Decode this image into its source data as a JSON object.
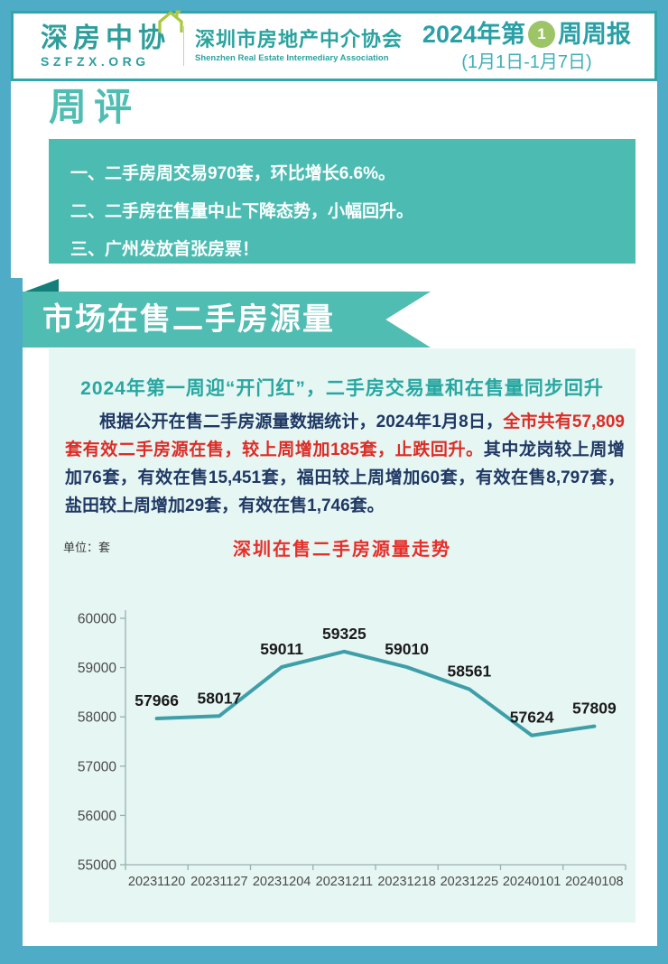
{
  "header": {
    "logo_cn": "深房中协",
    "logo_url": "SZFZX.ORG",
    "org_cn": "深圳市房地产中介协会",
    "org_en": "Shenzhen Real Estate Intermediary Association",
    "title_prefix": "2024年第",
    "week_number": "1",
    "title_suffix": "周周报",
    "date_range": "(1月1日-1月7日)"
  },
  "weekly_review": {
    "title": "周评",
    "items": [
      "一、二手房周交易970套，环比增长6.6%。",
      "二、二手房在售量中止下降态势，小幅回升。",
      "三、广州发放首张房票！"
    ]
  },
  "section": {
    "banner": "市场在售二手房源量",
    "subtitle": "2024年第一周迎“开门红”，二手房交易量和在售量同步回升",
    "paragraph_segments": [
      "根据公开在售二手房源量数据统计，2024年1月8日，",
      "全市共有57,809套有效二手房源在售，较上周增加185套，止跌回升。",
      "其中龙岗较上周增加76套，有效在售15,451套，福田较上周增加60套，有效在售8,797套，盐田较上周增加29套，有效在售1,746套。"
    ],
    "unit_label": "单位：套"
  },
  "chart_data": {
    "type": "line",
    "title": "深圳在售二手房源量走势",
    "categories": [
      "20231120",
      "20231127",
      "20231204",
      "20231211",
      "20231218",
      "20231225",
      "20240101",
      "20240108"
    ],
    "values": [
      57966,
      58017,
      59011,
      59325,
      59010,
      58561,
      57624,
      57809
    ],
    "ylabel": "套",
    "ylim": [
      55000,
      60000
    ],
    "ytick_step": 1000,
    "grid": false,
    "legend": false,
    "line_color": "#3E9FA9",
    "label_color": "#1a1a1a",
    "axis_color": "#9bb0b0",
    "tick_text_color": "#4a4a4a"
  },
  "colors": {
    "frame_blue": "#4FACC6",
    "teal_box": "#4CBCB2",
    "ribbon_teal": "#4FBDB2",
    "fold_dark": "#137E7A",
    "header_teal": "#2AA0A6",
    "circle_green": "#9DC568",
    "navy_text": "#1F3864",
    "red_text": "#DD2C26",
    "panel_bg": "#E6F6F3"
  }
}
